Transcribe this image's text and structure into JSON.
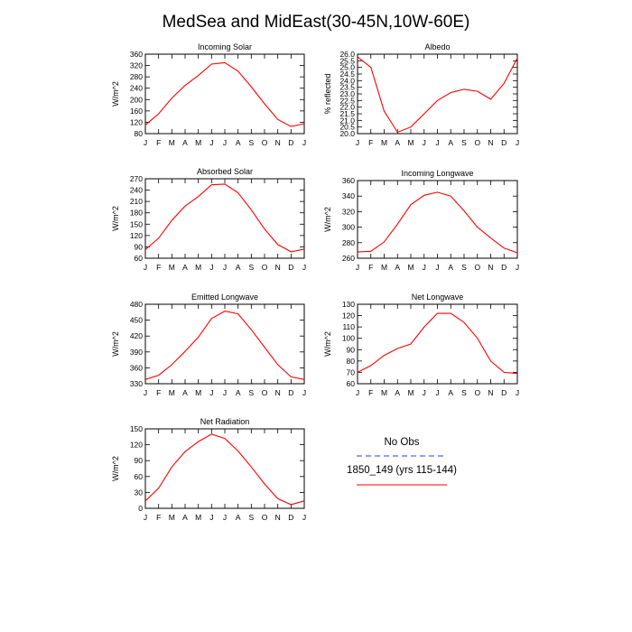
{
  "figure": {
    "title": "MedSea and MidEast(30-45N,10W-60E)"
  },
  "colors": {
    "model": "#ff0000",
    "obs": "#3333ff"
  },
  "legend": {
    "items": [
      {
        "label": "No Obs",
        "color": "#3333ff",
        "style": "dashed"
      },
      {
        "label": "1850_149 (yrs 115-144)",
        "color": "#ff0000",
        "style": "solid"
      }
    ]
  },
  "chart_data": [
    {
      "type": "line",
      "title": "Incoming Solar",
      "ylabel": "W/m^2",
      "xlabel": "",
      "categories": [
        "J",
        "F",
        "M",
        "A",
        "M",
        "J",
        "J",
        "A",
        "S",
        "O",
        "N",
        "D",
        "J"
      ],
      "ylim": [
        80,
        360
      ],
      "yticks": [
        80,
        120,
        160,
        200,
        240,
        280,
        320,
        360
      ],
      "ytick_labels": [
        "80",
        "120",
        "160",
        "200",
        "240",
        "280",
        "320",
        "360"
      ],
      "series": [
        {
          "values": [
            110,
            150,
            205,
            250,
            285,
            325,
            330,
            300,
            245,
            185,
            130,
            105,
            115
          ]
        }
      ]
    },
    {
      "type": "line",
      "title": "Albedo",
      "ylabel": "% reflected",
      "xlabel": "",
      "categories": [
        "J",
        "F",
        "M",
        "A",
        "M",
        "J",
        "J",
        "A",
        "S",
        "O",
        "N",
        "D",
        "J"
      ],
      "ylim": [
        20,
        26
      ],
      "yticks": [
        20,
        21,
        22,
        23,
        24,
        25,
        26
      ],
      "ytick_labels": [
        "20.0",
        "20.5",
        "21.0",
        "21.5",
        "22.0",
        "22.5",
        "23.0",
        "23.5",
        "24.0",
        "24.5",
        "25.0",
        "25.5",
        "26.0"
      ],
      "yticks_fine": [
        20,
        20.5,
        21,
        21.5,
        22,
        22.5,
        23,
        23.5,
        24,
        24.5,
        25,
        25.5,
        26
      ],
      "series": [
        {
          "values": [
            25.8,
            25.0,
            21.7,
            20.1,
            20.5,
            21.5,
            22.5,
            23.1,
            23.35,
            23.2,
            22.6,
            23.8,
            25.7
          ]
        }
      ]
    },
    {
      "type": "line",
      "title": "Absorbed Solar",
      "ylabel": "W/m^2",
      "xlabel": "",
      "categories": [
        "J",
        "F",
        "M",
        "A",
        "M",
        "J",
        "J",
        "A",
        "S",
        "O",
        "N",
        "D",
        "J"
      ],
      "ylim": [
        60,
        270
      ],
      "yticks": [
        60,
        90,
        120,
        150,
        180,
        210,
        240,
        270
      ],
      "ytick_labels": [
        "60",
        "90",
        "120",
        "150",
        "180",
        "210",
        "240",
        "270"
      ],
      "series": [
        {
          "values": [
            83,
            113,
            160,
            198,
            223,
            254,
            256,
            233,
            188,
            137,
            96,
            77,
            84
          ]
        }
      ]
    },
    {
      "type": "line",
      "title": "Incoming Longwave",
      "ylabel": "W/m^2",
      "xlabel": "",
      "categories": [
        "J",
        "F",
        "M",
        "A",
        "M",
        "J",
        "J",
        "A",
        "S",
        "O",
        "N",
        "D",
        "J"
      ],
      "ylim": [
        260,
        360
      ],
      "yticks": [
        260,
        280,
        300,
        320,
        340,
        360
      ],
      "ytick_labels": [
        "260",
        "280",
        "300",
        "320",
        "340",
        "360"
      ],
      "series": [
        {
          "values": [
            268,
            269,
            281,
            304,
            329,
            341,
            345,
            340,
            321,
            300,
            286,
            273,
            267
          ]
        }
      ]
    },
    {
      "type": "line",
      "title": "Emitted Longwave",
      "ylabel": "W/m^2",
      "xlabel": "",
      "categories": [
        "J",
        "F",
        "M",
        "A",
        "M",
        "J",
        "J",
        "A",
        "S",
        "O",
        "N",
        "D",
        "J"
      ],
      "ylim": [
        330,
        480
      ],
      "yticks": [
        330,
        360,
        390,
        420,
        450,
        480
      ],
      "ytick_labels": [
        "330",
        "360",
        "390",
        "420",
        "450",
        "480"
      ],
      "series": [
        {
          "values": [
            338,
            346,
            366,
            391,
            418,
            453,
            467,
            462,
            432,
            399,
            366,
            343,
            338
          ]
        }
      ]
    },
    {
      "type": "line",
      "title": "Net Longwave",
      "ylabel": "W/m^2",
      "xlabel": "",
      "categories": [
        "J",
        "F",
        "M",
        "A",
        "M",
        "J",
        "J",
        "A",
        "S",
        "O",
        "N",
        "D",
        "J"
      ],
      "ylim": [
        60,
        130
      ],
      "yticks": [
        60,
        70,
        80,
        90,
        100,
        110,
        120,
        130
      ],
      "ytick_labels": [
        "60",
        "70",
        "80",
        "90",
        "100",
        "110",
        "120",
        "130"
      ],
      "series": [
        {
          "values": [
            70,
            76,
            85,
            91,
            95,
            110,
            122,
            122,
            114,
            100,
            80,
            70,
            69
          ]
        }
      ]
    },
    {
      "type": "line",
      "title": "Net Radiation",
      "ylabel": "W/m^2",
      "xlabel": "",
      "categories": [
        "J",
        "F",
        "M",
        "A",
        "M",
        "J",
        "J",
        "A",
        "S",
        "O",
        "N",
        "D",
        "J"
      ],
      "ylim": [
        0,
        150
      ],
      "yticks": [
        0,
        30,
        60,
        90,
        120,
        150
      ],
      "ytick_labels": [
        "0",
        "30",
        "60",
        "90",
        "120",
        "150"
      ],
      "series": [
        {
          "values": [
            14,
            38,
            78,
            107,
            126,
            140,
            132,
            108,
            78,
            46,
            18,
            7,
            14
          ]
        }
      ]
    }
  ]
}
